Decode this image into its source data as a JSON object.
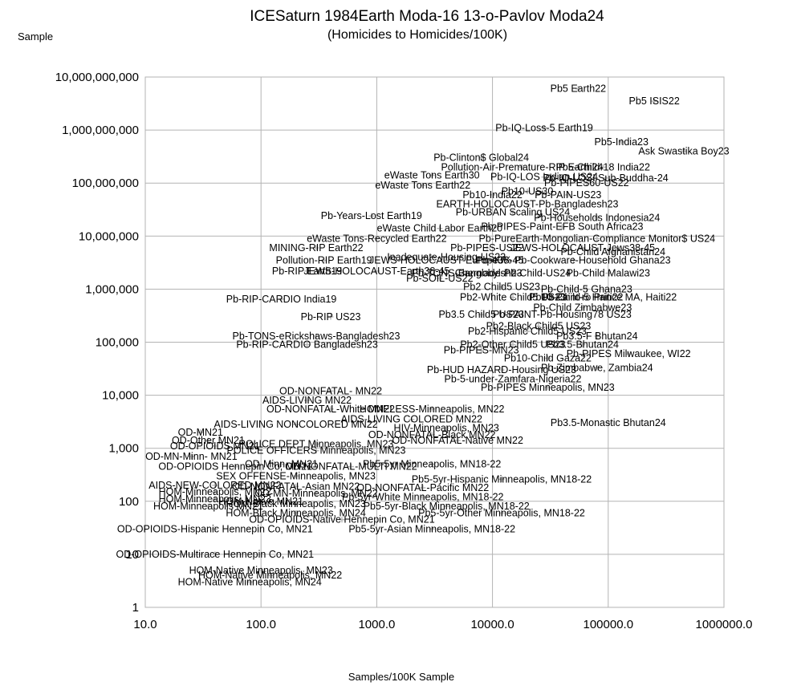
{
  "chart_data": {
    "type": "scatter",
    "title": "ICESaturn 1984Earth Moda-16 13-o-Pavlov Moda24",
    "subtitle": "(Homicides to Homicides/100K)",
    "xlabel": "Samples/100K Sample",
    "ylabel": "Sample",
    "x_scale": "log",
    "y_scale": "log",
    "xlim": [
      10,
      1000000
    ],
    "ylim": [
      1,
      10000000000
    ],
    "grid": true,
    "legend": "none",
    "marker": "plus",
    "marker_color": "#b4b4b4",
    "x_tick_labels": [
      "10.0",
      "100.0",
      "1000.0",
      "10000.0",
      "100000.0",
      "1000000.0"
    ],
    "y_tick_labels": [
      "1",
      "10",
      "100",
      "1,000",
      "10,000",
      "100,000",
      "1,000,000",
      "10,000,000",
      "100,000,000",
      "1,000,000,000",
      "10,000,000,000"
    ],
    "labeled_points": [
      {
        "label": "Pb5 Earth22",
        "x": 55000,
        "y": 6000000000
      },
      {
        "label": "Pb5 ISIS22",
        "x": 250000,
        "y": 3500000000
      },
      {
        "label": "Pb-IQ-Loss-5 Earth19",
        "x": 28000,
        "y": 1100000000
      },
      {
        "label": "Pb5-India23",
        "x": 130000,
        "y": 600000000
      },
      {
        "label": "Ask Swastika Boy23",
        "x": 450000,
        "y": 400000000
      },
      {
        "label": "Pb-Clinton$ Global24",
        "x": 8000,
        "y": 300000000
      },
      {
        "label": "Pollution-Air-Premature-RIP Earth24",
        "x": 18000,
        "y": 200000000
      },
      {
        "label": "Pb5-Child-18 India22",
        "x": 90000,
        "y": 200000000
      },
      {
        "label": "eWaste Tons Earth30",
        "x": 3000,
        "y": 140000000
      },
      {
        "label": "Pb-IQ-LOSI Sub-Buddha-24",
        "x": 95000,
        "y": 125000000
      },
      {
        "label": "Pb-IQ-LOS Indian US24",
        "x": 28000,
        "y": 130000000
      },
      {
        "label": "Pb-PIPES60-US22",
        "x": 65000,
        "y": 100000000
      },
      {
        "label": "eWaste Tons Earth22",
        "x": 2500,
        "y": 90000000
      },
      {
        "label": "Pb10-US30",
        "x": 20000,
        "y": 70000000
      },
      {
        "label": "Pb10-India22",
        "x": 10000,
        "y": 60000000
      },
      {
        "label": "Pb-PAIN-US23",
        "x": 45000,
        "y": 60000000
      },
      {
        "label": "EARTH-HOLOCAUST-Pb-Bangladesh23",
        "x": 20000,
        "y": 40000000
      },
      {
        "label": "Pb-URBAN Scaling US24",
        "x": 15000,
        "y": 28000000
      },
      {
        "label": "Pb-Households Indonesia24",
        "x": 80000,
        "y": 22000000
      },
      {
        "label": "Pb-Years-Lost Earth19",
        "x": 900,
        "y": 24000000
      },
      {
        "label": "eWaste Child Labor Earth20",
        "x": 3500,
        "y": 14000000
      },
      {
        "label": "Pb-PIPES-Paint-EFB South Africa23",
        "x": 40000,
        "y": 15000000
      },
      {
        "label": "eWaste Tons-Recycled Earth22",
        "x": 1000,
        "y": 9000000
      },
      {
        "label": "Pb-PureEarth-Mongolian-Compliance Monitor$ US24",
        "x": 80000,
        "y": 9000000
      },
      {
        "label": "MINING-RIP Earth22",
        "x": 300,
        "y": 6000000
      },
      {
        "label": "Pb-PIPES-US22",
        "x": 9000,
        "y": 6000000
      },
      {
        "label": "JEWS-HOLOCAUST-Jews38-45",
        "x": 60000,
        "y": 6000000
      },
      {
        "label": "Pb-Child Afghanistan24",
        "x": 110000,
        "y": 5000000
      },
      {
        "label": "Inadequate-Housing-US23",
        "x": 4000,
        "y": 4000000
      },
      {
        "label": "Pollution-RIP Earth19",
        "x": 350,
        "y": 3500000
      },
      {
        "label": "JEWS-HOLOCAUST-Europe38-45",
        "x": 4000,
        "y": 3500000
      },
      {
        "label": "Pb-40% Pb-Cookware-Household Ghana23",
        "x": 50000,
        "y": 3500000
      },
      {
        "label": "Pb-RIP Earth19",
        "x": 250,
        "y": 2200000
      },
      {
        "label": "JEWS-HOLOCAUST-Earth38-45",
        "x": 1000,
        "y": 2200000
      },
      {
        "label": "Pb-TONS-Bangladesh23",
        "x": 6000,
        "y": 2000000
      },
      {
        "label": "Chernobyl-Pb-Child-US24",
        "x": 15000,
        "y": 2000000
      },
      {
        "label": "Pb-Child Malawi23",
        "x": 100000,
        "y": 2000000
      },
      {
        "label": "Pb-SOIL-US22",
        "x": 3500,
        "y": 1600000
      },
      {
        "label": "Pb2 Child5 US23",
        "x": 12000,
        "y": 1100000
      },
      {
        "label": "Pb-Child-5 Ghana23",
        "x": 65000,
        "y": 1000000
      },
      {
        "label": "Pb2-White Child5 US23",
        "x": 15000,
        "y": 700000
      },
      {
        "label": "Pb-Child-5 Haiti22",
        "x": 60000,
        "y": 700000
      },
      {
        "label": "Pb10-Paint-ro Prince MA, Haiti22",
        "x": 90000,
        "y": 700000
      },
      {
        "label": "Pb-RIP-CARDIO India19",
        "x": 150,
        "y": 650000
      },
      {
        "label": "Pb-Child Zimbabwe23",
        "x": 60000,
        "y": 450000
      },
      {
        "label": "Pb3.5 Child5 US23",
        "x": 8000,
        "y": 330000
      },
      {
        "label": "Pb-PAINT-Pb-Housing78 US23",
        "x": 40000,
        "y": 330000
      },
      {
        "label": "Pb-RIP US23",
        "x": 400,
        "y": 300000
      },
      {
        "label": "Pb2-Black Child5 US23",
        "x": 25000,
        "y": 200000
      },
      {
        "label": "Pb2-Hispanic Child5 US23",
        "x": 20000,
        "y": 160000
      },
      {
        "label": "Pb-TONS-eRickshaws-Bangladesh23",
        "x": 300,
        "y": 130000
      },
      {
        "label": "Pb3.5-F Bhutan24",
        "x": 80000,
        "y": 130000
      },
      {
        "label": "Pb-RIP-CARDIO Bangladesh23",
        "x": 250,
        "y": 90000
      },
      {
        "label": "Pb2-Other Child5 US23",
        "x": 15000,
        "y": 90000
      },
      {
        "label": "Pb3.5-Bhutan24",
        "x": 60000,
        "y": 90000
      },
      {
        "label": "Pb-PIPES-MN23",
        "x": 8000,
        "y": 70000
      },
      {
        "label": "Pb-PIPES Milwaukee, WI22",
        "x": 150000,
        "y": 60000
      },
      {
        "label": "Pb10-Child Gaza22",
        "x": 30000,
        "y": 50000
      },
      {
        "label": "Pb-HUD HAZARD-Housing US23",
        "x": 12000,
        "y": 30000
      },
      {
        "label": "Pb-Zimbabwe, Zambia24",
        "x": 80000,
        "y": 33000
      },
      {
        "label": "Pb-5-under-Zamfara-Nigeria22",
        "x": 15000,
        "y": 20000
      },
      {
        "label": "Pb-PIPES Minneapolis, MN23",
        "x": 30000,
        "y": 14000
      },
      {
        "label": "OD-NONFATAL- MN22",
        "x": 400,
        "y": 12000
      },
      {
        "label": "AIDS-LIVING MN22",
        "x": 250,
        "y": 8000
      },
      {
        "label": "OD-NONFATAL-White MN22",
        "x": 400,
        "y": 5500
      },
      {
        "label": "HOMELESS-Minneapolis, MN22",
        "x": 3000,
        "y": 5500
      },
      {
        "label": "AIDS-LIVING COLORED MN22",
        "x": 2000,
        "y": 3500
      },
      {
        "label": "AIDS-LIVING NONCOLORED MN22",
        "x": 200,
        "y": 2800
      },
      {
        "label": "HIV-Minneapolis, MN23",
        "x": 4000,
        "y": 2400
      },
      {
        "label": "OD-NONFATAL-Black MN22",
        "x": 3000,
        "y": 1800
      },
      {
        "label": "OD-MN21",
        "x": 30,
        "y": 2000
      },
      {
        "label": "OD-NONFATAL-Native MN22",
        "x": 5000,
        "y": 1400
      },
      {
        "label": "OD-Other MN21",
        "x": 35,
        "y": 1400
      },
      {
        "label": "OD-OPIOIDS MN21",
        "x": 40,
        "y": 1100
      },
      {
        "label": "POLICE DEPT Minneapolis, MN23",
        "x": 300,
        "y": 1200
      },
      {
        "label": "POLICE OFFICERS Minneapolis, MN23",
        "x": 300,
        "y": 900
      },
      {
        "label": "OD-MN-Minn- MN21",
        "x": 25,
        "y": 700
      },
      {
        "label": "OD-Minn- MN21",
        "x": 150,
        "y": 500
      },
      {
        "label": "OD-OPIOIDS Hennepin Co, MN21",
        "x": 60,
        "y": 450
      },
      {
        "label": "OD-NONFATAL-MULTI MN22",
        "x": 600,
        "y": 450
      },
      {
        "label": "Pb5-5yr Minneapolis, MN18-22",
        "x": 3000,
        "y": 500
      },
      {
        "label": "SEX OFFENSE-Minneapolis, MN23",
        "x": 200,
        "y": 300
      },
      {
        "label": "Pb5-5yr-Hispanic Minneapolis, MN18-22",
        "x": 12000,
        "y": 260
      },
      {
        "label": "AIDS-NEW-COLORED MN22",
        "x": 40,
        "y": 200
      },
      {
        "label": "OD-NONFATAL-Asian MN22",
        "x": 200,
        "y": 190
      },
      {
        "label": "OD-NONFATAL-Pacific MN22",
        "x": 2500,
        "y": 180
      },
      {
        "label": "HOM-Minneapolis, MN22",
        "x": 40,
        "y": 150
      },
      {
        "label": "HOM-Minneapolis, MN23",
        "x": 40,
        "y": 110
      },
      {
        "label": "OD-MN-Minneapolis, MN22",
        "x": 300,
        "y": 140
      },
      {
        "label": "Pb-5yr-White Minneapolis, MN18-22",
        "x": 2500,
        "y": 120
      },
      {
        "label": "HOM-Native MN21",
        "x": 100,
        "y": 100
      },
      {
        "label": "HOM-Minneapolis MN21",
        "x": 35,
        "y": 80
      },
      {
        "label": "HOM-Black Minneapolis, MN23",
        "x": 200,
        "y": 90
      },
      {
        "label": "Pb5-5yr-Black Minneapolis, MN18-22",
        "x": 4000,
        "y": 80
      },
      {
        "label": "HOM-Black Minneapolis, MN24",
        "x": 200,
        "y": 60
      },
      {
        "label": "Pb5-5yr-Other Minneapolis, MN18-22",
        "x": 12000,
        "y": 60
      },
      {
        "label": "OD-OPIOIDS-Native Hennepin Co, MN21",
        "x": 500,
        "y": 45
      },
      {
        "label": "OD-OPIOIDS-Hispanic Hennepin Co, MN21",
        "x": 40,
        "y": 30
      },
      {
        "label": "Pb5-5yr-Asian Minneapolis, MN18-22",
        "x": 3000,
        "y": 30
      },
      {
        "label": "OD-OPIOIDS-Multirace Hennepin Co, MN21",
        "x": 40,
        "y": 10
      },
      {
        "label": "HOM-Native Minneapolis, MN23",
        "x": 100,
        "y": 5
      },
      {
        "label": "HOM-Native Minneapolis, MN22",
        "x": 120,
        "y": 4
      },
      {
        "label": "Pb3.5-Monastic Bhutan24",
        "x": 100000,
        "y": 3000
      },
      {
        "label": "HOM-Native Minneapolis, MN24",
        "x": 80,
        "y": 3
      }
    ]
  }
}
